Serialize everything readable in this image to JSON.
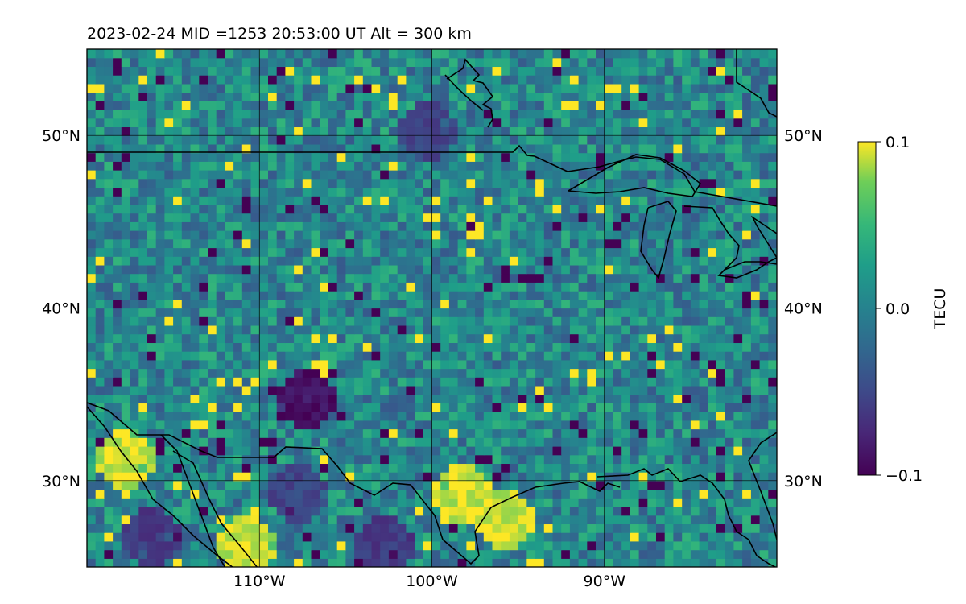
{
  "title": "2023-02-24  MID =1253    20:53:00  UT  Alt = 300 km",
  "colormap": "viridis",
  "colors": {
    "low": "#440154",
    "mid": "#21918c",
    "high": "#fde725",
    "coastline": "#000000",
    "grid": "#000000"
  },
  "chart_data": {
    "type": "heatmap",
    "title": "2023-02-24  MID =1253    20:53:00  UT  Alt = 300 km",
    "x_range_lon": [
      -120,
      -80
    ],
    "y_range_lat": [
      25,
      55
    ],
    "grid": true,
    "x_ticks": [
      {
        "value": -110,
        "label": "110°W"
      },
      {
        "value": -100,
        "label": "100°W"
      },
      {
        "value": -90,
        "label": "90°W"
      }
    ],
    "y_ticks": [
      {
        "value": 30,
        "label": "30°N"
      },
      {
        "value": 40,
        "label": "40°N"
      },
      {
        "value": 50,
        "label": "50°N"
      }
    ],
    "colorbar": {
      "label": "TECU",
      "range": [
        -0.1,
        0.1
      ],
      "ticks": [
        {
          "value": 0.1,
          "label": "0.1"
        },
        {
          "value": 0.0,
          "label": "0.0"
        },
        {
          "value": -0.1,
          "label": "−0.1"
        }
      ],
      "placement": "right"
    },
    "features": [
      {
        "name": "strong positive patch",
        "lon": -96,
        "lat": 27.5,
        "value": 0.1
      },
      {
        "name": "strong positive patch",
        "lon": -118,
        "lat": 31,
        "value": 0.1
      },
      {
        "name": "strong positive patch",
        "lon": -111,
        "lat": 26,
        "value": 0.1
      },
      {
        "name": "strong positive patch",
        "lon": -98.5,
        "lat": 29,
        "value": 0.1
      },
      {
        "name": "negative patch",
        "lon": -107.5,
        "lat": 34.5,
        "value": -0.1
      },
      {
        "name": "negative patch",
        "lon": -103,
        "lat": 26,
        "value": -0.07
      },
      {
        "name": "negative patch",
        "lon": -100.5,
        "lat": 50,
        "value": -0.06
      },
      {
        "name": "negative patch",
        "lon": -116.5,
        "lat": 26.5,
        "value": -0.07
      },
      {
        "name": "negative patch",
        "lon": -108,
        "lat": 29,
        "value": -0.06
      }
    ]
  }
}
